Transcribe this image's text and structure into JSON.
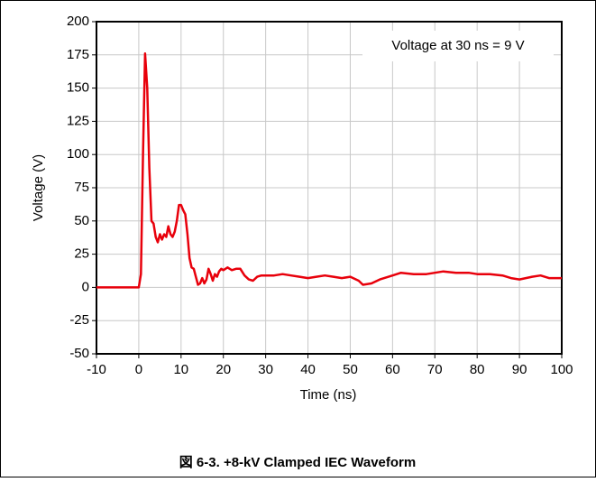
{
  "chart_data": {
    "type": "line",
    "x_label": "Time (ns)",
    "y_label": "Voltage (V)",
    "annotation": "Voltage at 30 ns = 9 V",
    "caption": "図 6-3. +8-kV Clamped IEC Waveform",
    "xlim": [
      -10,
      100
    ],
    "xticks": [
      -10,
      0,
      10,
      20,
      30,
      40,
      50,
      60,
      70,
      80,
      90,
      100
    ],
    "ylim": [
      -50,
      200
    ],
    "yticks": [
      -50,
      -25,
      0,
      25,
      50,
      75,
      100,
      125,
      150,
      175,
      200
    ],
    "grid": true,
    "series": [
      {
        "color": "#e8000b",
        "x": [
          -10,
          0,
          0.5,
          1,
          1.5,
          2,
          2.5,
          3,
          3.5,
          4,
          4.5,
          5,
          5.5,
          6,
          6.5,
          7,
          7.5,
          8,
          8.5,
          9,
          9.5,
          10,
          10.5,
          11,
          11.5,
          12,
          12.5,
          13,
          13.5,
          14,
          14.5,
          15,
          15.5,
          16,
          16.5,
          17,
          17.5,
          18,
          18.5,
          19,
          19.5,
          20,
          21,
          22,
          23,
          24,
          25,
          26,
          27,
          28,
          29,
          30,
          32,
          34,
          36,
          38,
          40,
          42,
          44,
          46,
          48,
          50,
          52,
          53,
          55,
          57,
          60,
          62,
          65,
          68,
          70,
          72,
          75,
          78,
          80,
          83,
          86,
          88,
          90,
          93,
          95,
          97,
          100
        ],
        "values": [
          0,
          0,
          10,
          100,
          176,
          150,
          90,
          50,
          48,
          38,
          34,
          40,
          36,
          40,
          38,
          46,
          40,
          38,
          42,
          50,
          62,
          62,
          58,
          55,
          40,
          22,
          15,
          14,
          8,
          2,
          3,
          7,
          3,
          6,
          14,
          10,
          5,
          10,
          8,
          12,
          14,
          13,
          15,
          13,
          14,
          14,
          9,
          6,
          5,
          8,
          9,
          9,
          9,
          10,
          9,
          8,
          7,
          8,
          9,
          8,
          7,
          8,
          5,
          2,
          3,
          6,
          9,
          11,
          10,
          10,
          11,
          12,
          11,
          11,
          10,
          10,
          9,
          7,
          6,
          8,
          9,
          7,
          7
        ]
      }
    ]
  }
}
